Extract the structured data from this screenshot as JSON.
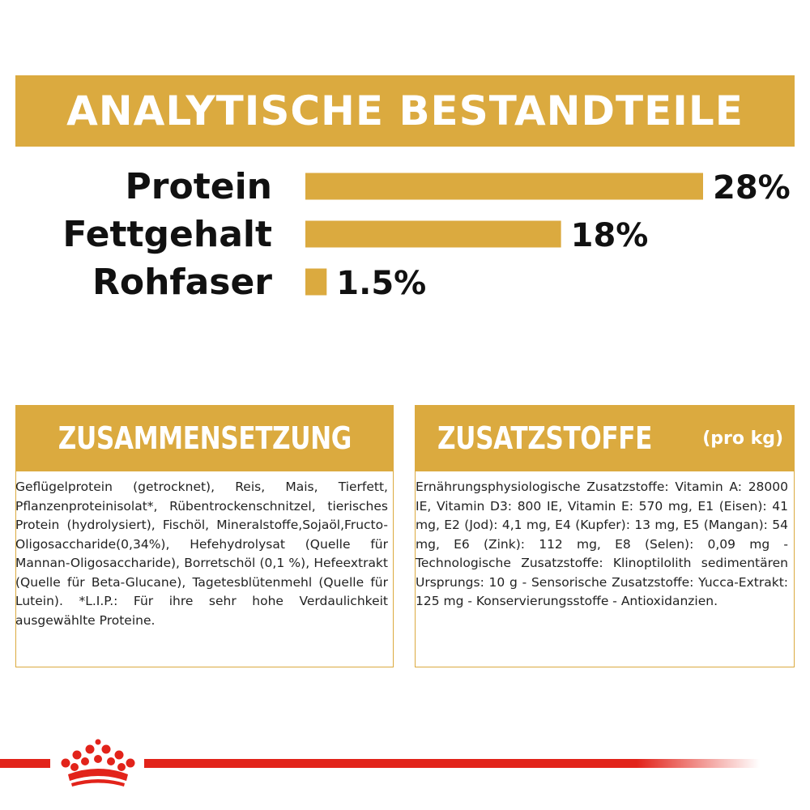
{
  "header": {
    "title": "ANALYTISCHE BESTANDTEILE"
  },
  "chart_data": {
    "type": "bar",
    "orientation": "horizontal",
    "categories": [
      "Protein",
      "Fettgehalt",
      "Rohfaser"
    ],
    "values": [
      28,
      18,
      1.5
    ],
    "value_labels": [
      "28%",
      "18%",
      "1.5%"
    ],
    "unit": "%",
    "xlim": [
      0,
      28
    ],
    "grid": false,
    "bar_color": "#DBAA3F"
  },
  "composition": {
    "title": "ZUSAMMENSETZUNG",
    "text": "Geflügelprotein (getrocknet), Reis, Mais, Tierfett, Pflanzenproteinisolat*, Rübentrockenschnitzel, tierisches Protein (hydrolysiert), Fischöl, Mineralstoffe,Sojaöl,Fructo-Oligosaccharide(0,34%), Hefehydrolysat (Quelle für Mannan-Oligosaccharide), Borretschöl (0,1 %), Hefeextrakt (Quelle für Beta-Glucane), Tagetesblütenmehl (Quelle für Lutein). *L.I.P.: Für ihre sehr hohe Verdaulichkeit ausgewählte Proteine."
  },
  "additives": {
    "title": "ZUSATZSTOFFE",
    "subtitle": "(pro kg)",
    "text": "Ernährungsphysiologische Zusatzstoffe: Vitamin A: 28000 IE, Vitamin D3: 800 IE, Vitamin E: 570 mg, E1 (Eisen): 41 mg, E2 (Jod): 4,1 mg, E4 (Kupfer): 13 mg, E5 (Mangan): 54 mg, E6 (Zink): 112 mg, E8 (Selen): 0,09 mg - Technologische Zusatzstoffe: Klinoptilolith sedimentären Ursprungs: 10 g - Sensorische Zusatzstoffe: Yucca-Extrakt: 125 mg - Konservierungsstoffe - Antioxidanzien."
  },
  "colors": {
    "accent": "#DBAA3F",
    "brand_red": "#E2231A",
    "text": "#111111"
  },
  "icons": {
    "brand_logo": "crown-icon"
  }
}
